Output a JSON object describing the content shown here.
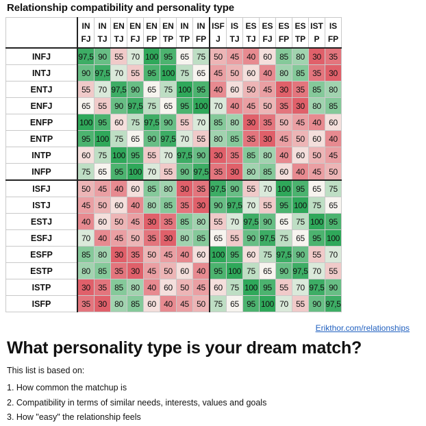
{
  "title": "Relationship compatibility and personality type",
  "source_link": "Erikthor.com/relationships",
  "headline": "What personality type is your dream match?",
  "intro": "This list is based on:",
  "notes": [
    "1. How common the matchup is",
    "2. Compatibility in terms of similar needs, interests, values and goals",
    "3. How \"easy\" the relationship feels"
  ],
  "colors": {
    "high": "#2fa85a",
    "mid": "#f7f4ef",
    "low": "#e0606a",
    "divider": "#222222"
  },
  "chart_data": {
    "type": "heatmap",
    "title": "Relationship compatibility and personality type",
    "color_scale": {
      "min": 30,
      "max": 100,
      "low_color": "#e0606a",
      "high_color": "#2fa85a"
    },
    "columns": [
      {
        "top": "IN",
        "bottom": "FJ"
      },
      {
        "top": "IN",
        "bottom": "TJ"
      },
      {
        "top": "EN",
        "bottom": "TJ"
      },
      {
        "top": "EN",
        "bottom": "FJ"
      },
      {
        "top": "EN",
        "bottom": "FP"
      },
      {
        "top": "EN",
        "bottom": "TP"
      },
      {
        "top": "IN",
        "bottom": "TP"
      },
      {
        "top": "IN",
        "bottom": "FP"
      },
      {
        "top": "ISF",
        "bottom": "J"
      },
      {
        "top": "IS",
        "bottom": "TJ"
      },
      {
        "top": "ES",
        "bottom": "TJ"
      },
      {
        "top": "ES",
        "bottom": "FJ"
      },
      {
        "top": "ES",
        "bottom": "FP"
      },
      {
        "top": "ES",
        "bottom": "TP"
      },
      {
        "top": "IST",
        "bottom": "P"
      },
      {
        "top": "IS",
        "bottom": "FP"
      }
    ],
    "rows": [
      "INFJ",
      "INTJ",
      "ENTJ",
      "ENFJ",
      "ENFP",
      "ENTP",
      "INTP",
      "INFP",
      "ISFJ",
      "ISTJ",
      "ESTJ",
      "ESFJ",
      "ESFP",
      "ESTP",
      "ISTP",
      "ISFP"
    ],
    "values": [
      [
        97.5,
        90,
        55,
        70,
        100,
        95,
        65,
        75,
        50,
        45,
        40,
        60,
        85,
        80,
        30,
        35
      ],
      [
        90,
        97.5,
        70,
        55,
        95,
        100,
        75,
        65,
        45,
        50,
        60,
        40,
        80,
        85,
        35,
        30
      ],
      [
        55,
        70,
        97.5,
        90,
        65,
        75,
        100,
        95,
        40,
        60,
        50,
        45,
        30,
        35,
        85,
        80
      ],
      [
        65,
        55,
        90,
        97.5,
        75,
        65,
        95,
        100,
        70,
        40,
        45,
        50,
        35,
        30,
        80,
        85
      ],
      [
        100,
        95,
        60,
        75,
        97.5,
        90,
        55,
        70,
        85,
        80,
        30,
        35,
        50,
        45,
        40,
        60
      ],
      [
        95,
        100,
        75,
        65,
        90,
        97.5,
        70,
        55,
        80,
        85,
        35,
        30,
        45,
        50,
        60,
        40
      ],
      [
        60,
        75,
        100,
        95,
        55,
        70,
        97.5,
        90,
        30,
        35,
        85,
        80,
        40,
        60,
        50,
        45
      ],
      [
        75,
        65,
        95,
        100,
        70,
        55,
        90,
        97.5,
        35,
        30,
        80,
        85,
        60,
        40,
        45,
        50
      ],
      [
        50,
        45,
        40,
        60,
        85,
        80,
        30,
        35,
        97.5,
        90,
        55,
        70,
        100,
        95,
        65,
        75
      ],
      [
        45,
        50,
        60,
        40,
        80,
        85,
        35,
        30,
        90,
        97.5,
        70,
        55,
        95,
        100,
        75,
        65
      ],
      [
        40,
        60,
        50,
        45,
        30,
        35,
        85,
        80,
        55,
        70,
        97.5,
        90,
        65,
        75,
        100,
        95
      ],
      [
        70,
        40,
        45,
        50,
        35,
        30,
        80,
        85,
        65,
        55,
        90,
        97.5,
        75,
        65,
        95,
        100
      ],
      [
        85,
        80,
        30,
        35,
        50,
        45,
        40,
        60,
        100,
        95,
        60,
        75,
        97.5,
        90,
        55,
        70
      ],
      [
        80,
        85,
        35,
        30,
        45,
        50,
        60,
        40,
        95,
        100,
        75,
        65,
        90,
        97.5,
        70,
        55
      ],
      [
        30,
        35,
        85,
        80,
        40,
        60,
        50,
        45,
        60,
        75,
        100,
        95,
        55,
        70,
        97.5,
        90
      ],
      [
        35,
        30,
        80,
        85,
        60,
        40,
        45,
        50,
        75,
        65,
        95,
        100,
        70,
        55,
        90,
        97.5
      ]
    ],
    "value_display": {
      "decimal_separator": ","
    },
    "group_break_after": 8
  }
}
